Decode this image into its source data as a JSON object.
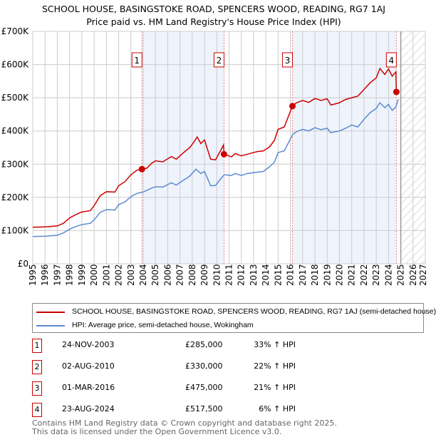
{
  "chart_data": {
    "type": "line",
    "title": "SCHOOL HOUSE, BASINGSTOKE ROAD, SPENCERS WOOD, READING, RG7 1AJ",
    "subtitle": "Price paid vs. HM Land Registry's House Price Index (HPI)",
    "xlim": [
      1995,
      2027
    ],
    "ylim": [
      0,
      700000
    ],
    "x_ticks": [
      "1995",
      "1996",
      "1997",
      "1998",
      "1999",
      "2000",
      "2001",
      "2002",
      "2003",
      "2004",
      "2005",
      "2006",
      "2007",
      "2008",
      "2009",
      "2010",
      "2011",
      "2012",
      "2013",
      "2014",
      "2015",
      "2016",
      "2017",
      "2018",
      "2019",
      "2020",
      "2021",
      "2022",
      "2023",
      "2024",
      "2025",
      "2026",
      "2027"
    ],
    "y_ticks": [
      {
        "v": 0,
        "label": "£0"
      },
      {
        "v": 100000,
        "label": "£100K"
      },
      {
        "v": 200000,
        "label": "£200K"
      },
      {
        "v": 300000,
        "label": "£300K"
      },
      {
        "v": 400000,
        "label": "£400K"
      },
      {
        "v": 500000,
        "label": "£500K"
      },
      {
        "v": 600000,
        "label": "£600K"
      },
      {
        "v": 700000,
        "label": "£700K"
      }
    ],
    "forecast_start": 2025.0,
    "series": [
      {
        "name": "SCHOOL HOUSE, BASINGSTOKE ROAD, SPENCERS WOOD, READING, RG7 1AJ (semi-detached house)",
        "color": "#cc0000",
        "x": [
          1995,
          1996,
          1997,
          1997.5,
          1998,
          1998.5,
          1999,
          1999.7,
          2000,
          2000.5,
          2001,
          2001.7,
          2002,
          2002.5,
          2003,
          2003.5,
          2003.9,
          2004.3,
          2004.7,
          2005,
          2005.6,
          2006.3,
          2006.7,
          2007.3,
          2007.8,
          2008.2,
          2008.4,
          2008.7,
          2009,
          2009.5,
          2009.9,
          2010.3,
          2010.55,
          2010.6,
          2011.2,
          2011.5,
          2012,
          2012.5,
          2013.3,
          2013.8,
          2014.3,
          2014.7,
          2015,
          2015.5,
          2016.17,
          2016.5,
          2017,
          2017.5,
          2018,
          2018.5,
          2019,
          2019.3,
          2020,
          2020.5,
          2021,
          2021.5,
          2022,
          2022.5,
          2023,
          2023.3,
          2023.7,
          2024,
          2024.3,
          2024.6,
          2024.64,
          2024.8
        ],
        "y": [
          110000,
          111000,
          114000,
          122000,
          138000,
          148000,
          156000,
          160000,
          175000,
          205000,
          217000,
          216000,
          235000,
          247000,
          268000,
          282000,
          285000,
          288000,
          303000,
          310000,
          307000,
          323000,
          315000,
          335000,
          350000,
          370000,
          382000,
          362000,
          373000,
          315000,
          313000,
          340000,
          358000,
          330000,
          322000,
          332000,
          325000,
          330000,
          338000,
          340000,
          352000,
          372000,
          405000,
          412000,
          475000,
          485000,
          492000,
          486000,
          498000,
          492000,
          497000,
          478000,
          485000,
          495000,
          500000,
          505000,
          525000,
          545000,
          560000,
          588000,
          570000,
          587000,
          565000,
          578000,
          517500,
          522000
        ]
      },
      {
        "name": "HPI: Average price, semi-detached house, Wokingham",
        "color": "#5b8bd0",
        "x": [
          1995,
          1996,
          1997,
          1997.5,
          1998,
          1998.5,
          1999,
          1999.7,
          2000,
          2000.5,
          2001,
          2001.7,
          2002,
          2002.5,
          2003,
          2003.5,
          2004,
          2004.7,
          2005,
          2005.6,
          2006.3,
          2006.7,
          2007.3,
          2007.8,
          2008.3,
          2008.7,
          2009,
          2009.5,
          2009.9,
          2010.3,
          2010.6,
          2011.2,
          2011.5,
          2012,
          2012.5,
          2013.3,
          2013.8,
          2014.3,
          2014.7,
          2015,
          2015.5,
          2016.2,
          2016.5,
          2017,
          2017.5,
          2018,
          2018.5,
          2019,
          2019.3,
          2020,
          2020.5,
          2021,
          2021.5,
          2022,
          2022.5,
          2023,
          2023.3,
          2023.7,
          2024,
          2024.3,
          2024.6,
          2024.8
        ],
        "y": [
          82000,
          83000,
          86000,
          93000,
          104000,
          112000,
          118000,
          122000,
          132000,
          155000,
          163000,
          162000,
          178000,
          186000,
          202000,
          212000,
          216000,
          228000,
          232000,
          231000,
          244000,
          237000,
          252000,
          264000,
          285000,
          272000,
          278000,
          235000,
          236000,
          255000,
          268000,
          266000,
          272000,
          266000,
          272000,
          276000,
          278000,
          292000,
          306000,
          335000,
          340000,
          390000,
          398000,
          405000,
          400000,
          410000,
          404000,
          408000,
          395000,
          400000,
          408000,
          418000,
          412000,
          435000,
          455000,
          468000,
          485000,
          470000,
          480000,
          462000,
          472000,
          496000
        ]
      }
    ],
    "sales": [
      {
        "n": "1",
        "date": "24-NOV-2003",
        "x": 2003.9,
        "price": "£285,000",
        "y": 285000,
        "hpi": "33% ↑ HPI"
      },
      {
        "n": "2",
        "date": "02-AUG-2010",
        "x": 2010.59,
        "price": "£330,000",
        "y": 330000,
        "hpi": "22% ↑ HPI"
      },
      {
        "n": "3",
        "date": "01-MAR-2016",
        "x": 2016.17,
        "price": "£475,000",
        "y": 475000,
        "hpi": "21% ↑ HPI"
      },
      {
        "n": "4",
        "date": "23-AUG-2024",
        "x": 2024.64,
        "price": "£517,500",
        "y": 517500,
        "hpi": "6% ↑ HPI"
      }
    ],
    "legend": {
      "red": "SCHOOL HOUSE, BASINGSTOKE ROAD, SPENCERS WOOD, READING, RG7 1AJ (semi-detached house)",
      "blue": "HPI: Average price, semi-detached house, Wokingham"
    }
  },
  "footer": {
    "line1": "Contains HM Land Registry data © Crown copyright and database right 2025.",
    "line2": "This data is licensed under the Open Government Licence v3.0."
  }
}
